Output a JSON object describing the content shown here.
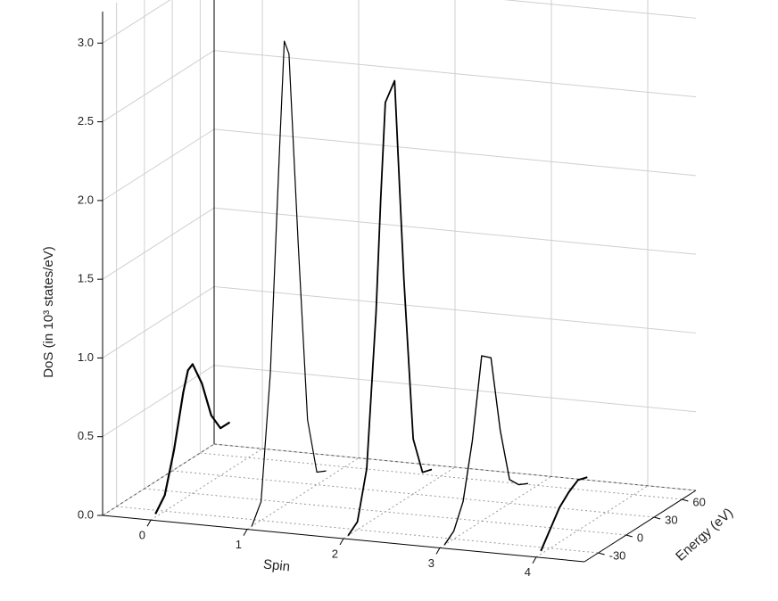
{
  "chart_data": {
    "type": "waterfall3d",
    "xlabel": "Spin",
    "ylabel": "Energy (eV)",
    "zlabel": "DoS (in 10³ states/eV)",
    "xlim": [
      -0.5,
      4.5
    ],
    "xticks": [
      0,
      1,
      2,
      3,
      4
    ],
    "ylim": [
      -45,
      75
    ],
    "yticks": [
      -30,
      0,
      30,
      60
    ],
    "zlim": [
      0,
      3.2
    ],
    "zticks": [
      {
        "value": 0,
        "label": "0.0"
      },
      0.5,
      {
        "value": 1,
        "label": "1.0"
      },
      1.5,
      {
        "value": 2,
        "label": "2.0"
      },
      2.5,
      {
        "value": 3,
        "label": "3.0"
      }
    ],
    "grid": true,
    "energy": [
      -40,
      -30,
      -20,
      -10,
      -5,
      0,
      10,
      20,
      30,
      40,
      50
    ],
    "series": [
      {
        "spin": 0,
        "color": "#000000",
        "line_width": 2.2,
        "values": [
          0.02,
          0.1,
          0.35,
          0.68,
          0.8,
          0.82,
          0.66,
          0.42,
          0.3,
          0.3,
          null
        ]
      },
      {
        "spin": 1,
        "color": "#000000",
        "line_width": 1.2,
        "values": [
          0.0,
          0.12,
          0.9,
          2.3,
          2.95,
          2.85,
          1.6,
          0.45,
          0.08,
          0.05,
          null
        ]
      },
      {
        "spin": 2,
        "color": "#000000",
        "line_width": 1.8,
        "values": [
          0.0,
          0.05,
          0.35,
          1.3,
          2.0,
          2.6,
          2.7,
          1.4,
          0.35,
          0.1,
          0.08
        ]
      },
      {
        "spin": 3,
        "color": "#000000",
        "line_width": 1.4,
        "values": [
          0.0,
          0.05,
          0.2,
          0.55,
          0.8,
          1.05,
          1.0,
          0.5,
          0.15,
          0.08,
          0.05
        ]
      },
      {
        "spin": 4,
        "color": "#000000",
        "line_width": 2.0,
        "values": [
          0.02,
          0.12,
          0.22,
          0.28,
          0.3,
          0.32,
          0.3,
          null,
          null,
          null,
          null
        ]
      }
    ]
  }
}
